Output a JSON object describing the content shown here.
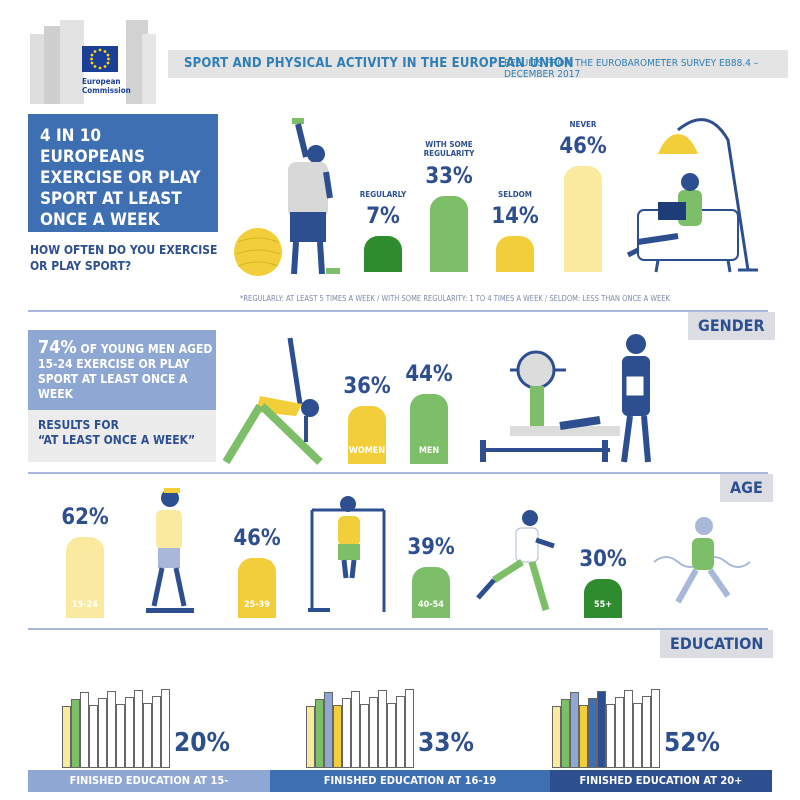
{
  "header": {
    "logo_text_line1": "European",
    "logo_text_line2": "Commission",
    "title": "SPORT AND PHYSICAL ACTIVITY IN THE EUROPEAN UNION",
    "subtitle": "RESULTS FROM THE EUROBAROMETER SURVEY EB88.4 – DECEMBER 2017"
  },
  "frequency": {
    "headline": "4 IN 10 EUROPEANS EXERCISE OR PLAY SPORT AT LEAST ONCE A WEEK",
    "question": "HOW OFTEN DO YOU EXERCISE OR PLAY SPORT?",
    "note": "*REGULARLY: AT LEAST 5 TIMES A WEEK / WITH SOME REGULARITY: 1 TO 4 TIMES A WEEK / SELDOM: LESS THAN ONCE A WEEK",
    "items": [
      {
        "label": "REGULARLY",
        "pct": "7%",
        "value": 7,
        "color": "#2e8b2e"
      },
      {
        "label": "WITH SOME REGULARITY",
        "pct": "33%",
        "value": 33,
        "color": "#7dbf69"
      },
      {
        "label": "SELDOM",
        "pct": "14%",
        "value": 14,
        "color": "#f2cf3a"
      },
      {
        "label": "NEVER",
        "pct": "46%",
        "value": 46,
        "color": "#faeaa0"
      }
    ]
  },
  "gender": {
    "tag": "GENDER",
    "headline_pct": "74%",
    "headline_rest": "OF YOUNG MEN AGED 15-24 EXERCISE OR PLAY SPORT AT LEAST ONCE A WEEK",
    "results_label": "RESULTS FOR",
    "results_quote": "“AT LEAST ONCE A WEEK”",
    "items": [
      {
        "label": "WOMEN",
        "pct": "36%",
        "value": 36,
        "color": "#f2cf3a"
      },
      {
        "label": "MEN",
        "pct": "44%",
        "value": 44,
        "color": "#7dbf69"
      }
    ]
  },
  "age": {
    "tag": "AGE",
    "items": [
      {
        "label": "15-24",
        "pct": "62%",
        "value": 62,
        "color": "#faeaa0"
      },
      {
        "label": "25-39",
        "pct": "46%",
        "value": 46,
        "color": "#f2cf3a"
      },
      {
        "label": "40-54",
        "pct": "39%",
        "value": 39,
        "color": "#7dbf69"
      },
      {
        "label": "55+",
        "pct": "30%",
        "value": 30,
        "color": "#2e8b2e"
      }
    ]
  },
  "education": {
    "tag": "EDUCATION",
    "items": [
      {
        "label": "FINISHED EDUCATION AT 15-",
        "pct": "20%",
        "value": 20,
        "color": "#8fa8d3"
      },
      {
        "label": "FINISHED EDUCATION AT 16-19",
        "pct": "33%",
        "value": 33,
        "color": "#3f6fb3"
      },
      {
        "label": "FINISHED EDUCATION AT 20+",
        "pct": "52%",
        "value": 52,
        "color": "#2d4f8f"
      }
    ]
  },
  "colors": {
    "dark_blue": "#2d4f8f",
    "mid_blue": "#3f6fb3",
    "light_blue": "#8fa8d3",
    "green_dark": "#2e8b2e",
    "green": "#7dbf69",
    "yellow": "#f2cf3a",
    "pale_yellow": "#faeaa0"
  }
}
